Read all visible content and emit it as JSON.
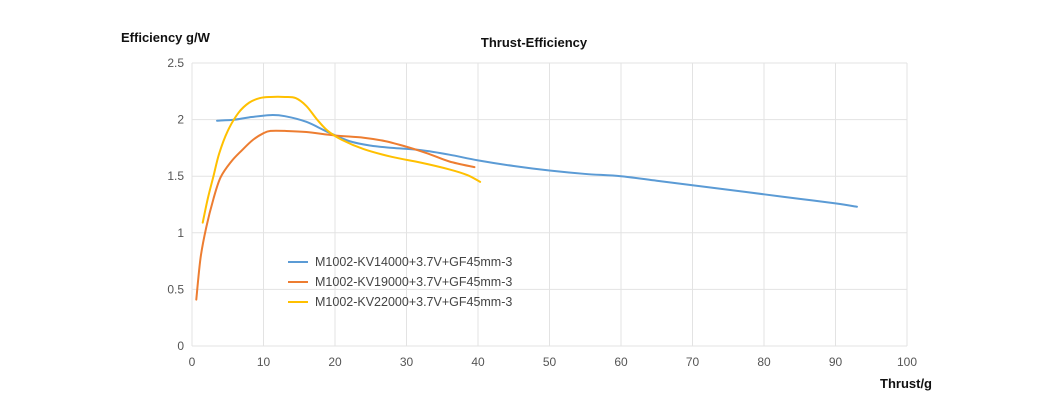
{
  "chart_data": {
    "type": "line",
    "title": "Thrust-Efficiency",
    "xlabel": "Thrust/g",
    "ylabel": "Efficiency g/W",
    "xlim": [
      0,
      100
    ],
    "ylim": [
      0,
      2.5
    ],
    "x_ticks": [
      "0",
      "10",
      "20",
      "30",
      "40",
      "50",
      "60",
      "70",
      "80",
      "90",
      "100"
    ],
    "y_ticks": [
      "0",
      "0.5",
      "1",
      "1.5",
      "2",
      "2.5"
    ],
    "grid": true,
    "legend_position": "lower-left",
    "series": [
      {
        "name": "M1002-KV14000+3.7V+GF45mm-3",
        "color": "#5b9bd5",
        "points": [
          [
            3.5,
            1.99
          ],
          [
            6,
            2.0
          ],
          [
            8,
            2.02
          ],
          [
            11,
            2.04
          ],
          [
            13,
            2.03
          ],
          [
            16,
            1.98
          ],
          [
            19,
            1.89
          ],
          [
            22,
            1.81
          ],
          [
            25,
            1.77
          ],
          [
            28,
            1.75
          ],
          [
            32,
            1.73
          ],
          [
            36,
            1.69
          ],
          [
            40,
            1.64
          ],
          [
            45,
            1.59
          ],
          [
            50,
            1.55
          ],
          [
            55,
            1.52
          ],
          [
            60,
            1.5
          ],
          [
            65,
            1.46
          ],
          [
            70,
            1.42
          ],
          [
            75,
            1.38
          ],
          [
            80,
            1.34
          ],
          [
            85,
            1.3
          ],
          [
            90,
            1.26
          ],
          [
            93,
            1.23
          ]
        ]
      },
      {
        "name": "M1002-KV19000+3.7V+GF45mm-3",
        "color": "#ed7d31",
        "points": [
          [
            0.6,
            0.41
          ],
          [
            1.2,
            0.78
          ],
          [
            2,
            1.05
          ],
          [
            3,
            1.3
          ],
          [
            4,
            1.49
          ],
          [
            5.5,
            1.63
          ],
          [
            7,
            1.73
          ],
          [
            8.5,
            1.82
          ],
          [
            10,
            1.88
          ],
          [
            11,
            1.9
          ],
          [
            13,
            1.9
          ],
          [
            16,
            1.89
          ],
          [
            20,
            1.86
          ],
          [
            24,
            1.84
          ],
          [
            27,
            1.81
          ],
          [
            30,
            1.76
          ],
          [
            33,
            1.7
          ],
          [
            36,
            1.63
          ],
          [
            39.5,
            1.58
          ]
        ]
      },
      {
        "name": "M1002-KV22000+3.7V+GF45mm-3",
        "color": "#ffc000",
        "points": [
          [
            1.5,
            1.09
          ],
          [
            2.2,
            1.3
          ],
          [
            3,
            1.5
          ],
          [
            3.8,
            1.7
          ],
          [
            5,
            1.9
          ],
          [
            6.5,
            2.06
          ],
          [
            8,
            2.15
          ],
          [
            9.5,
            2.19
          ],
          [
            11,
            2.2
          ],
          [
            13,
            2.2
          ],
          [
            14.5,
            2.19
          ],
          [
            16,
            2.12
          ],
          [
            17.5,
            2.0
          ],
          [
            19,
            1.9
          ],
          [
            21,
            1.82
          ],
          [
            24,
            1.74
          ],
          [
            28,
            1.67
          ],
          [
            32,
            1.62
          ],
          [
            36,
            1.56
          ],
          [
            38.5,
            1.51
          ],
          [
            40.3,
            1.45
          ]
        ]
      }
    ]
  }
}
